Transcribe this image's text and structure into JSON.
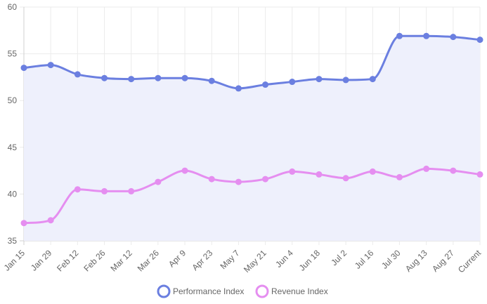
{
  "chart_data": {
    "type": "line",
    "title": "",
    "xlabel": "",
    "ylabel": "",
    "ylim": [
      35,
      60
    ],
    "yticks": [
      35,
      40,
      45,
      50,
      55,
      60
    ],
    "categories": [
      "Jan 15",
      "Jan 29",
      "Feb 12",
      "Feb 26",
      "Mar 12",
      "Mar 26",
      "Apr 9",
      "Apr 23",
      "May 7",
      "May 21",
      "Jun 4",
      "Jun 18",
      "Jul 2",
      "Jul 16",
      "Jul 30",
      "Aug 13",
      "Aug 27",
      "Current"
    ],
    "grid": true,
    "legend_position": "bottom",
    "series": [
      {
        "name": "Performance Index",
        "color": "#6b7fe0",
        "fill": "#eef0fc",
        "filled": true,
        "values": [
          53.5,
          53.8,
          52.8,
          52.4,
          52.3,
          52.4,
          52.4,
          52.1,
          51.3,
          51.7,
          52.0,
          52.3,
          52.2,
          52.3,
          56.9,
          56.9,
          56.8,
          56.5
        ]
      },
      {
        "name": "Revenue Index",
        "color": "#e58ef0",
        "fill": "none",
        "filled": false,
        "values": [
          36.9,
          37.2,
          40.5,
          40.3,
          40.3,
          41.3,
          42.5,
          41.6,
          41.3,
          41.6,
          42.4,
          42.1,
          41.7,
          42.4,
          41.8,
          42.7,
          42.5,
          42.1
        ]
      }
    ]
  }
}
